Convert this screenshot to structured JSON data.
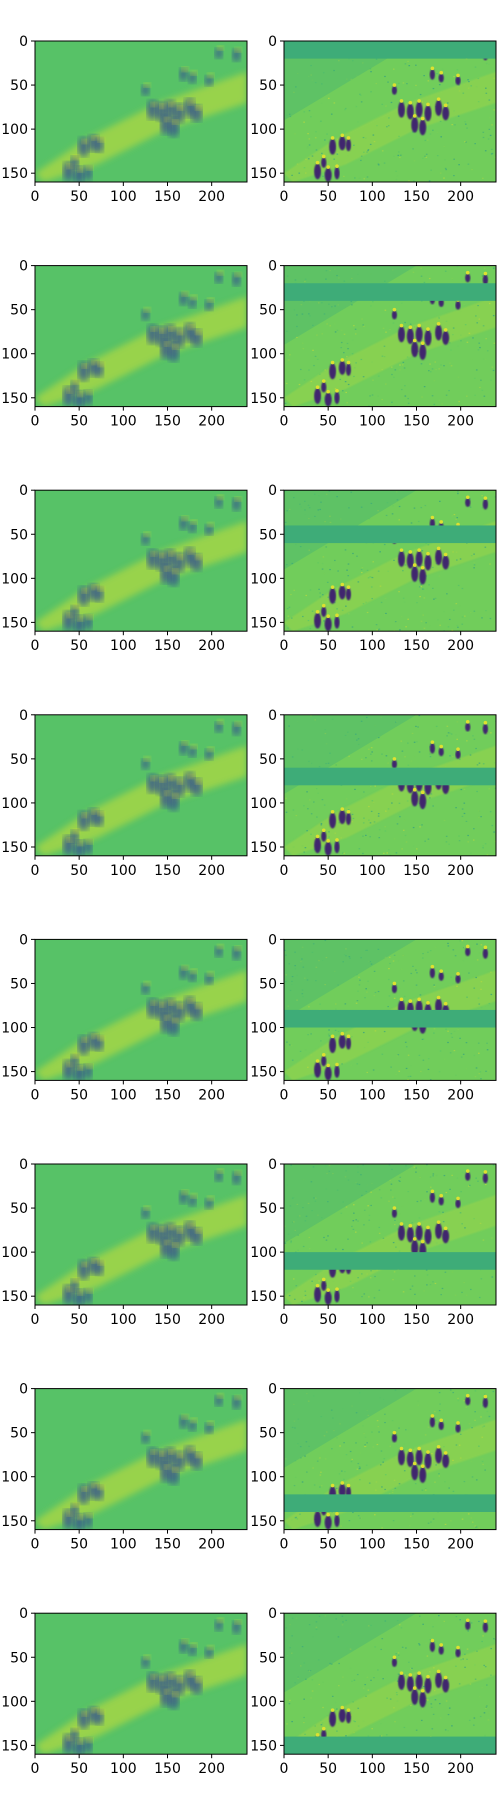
{
  "chart_data": {
    "type": "heatmap",
    "layout": {
      "rows": 8,
      "cols": 2
    },
    "colormap": "viridis",
    "grid": false,
    "xlim": [
      0,
      240
    ],
    "ylim": [
      160,
      0
    ],
    "x_ticks": [
      0,
      50,
      100,
      150,
      200
    ],
    "y_ticks": [
      0,
      50,
      100,
      150
    ],
    "x_tick_labels": [
      "0",
      "50",
      "100",
      "150",
      "200"
    ],
    "y_tick_labels": [
      "0",
      "50",
      "100",
      "150"
    ],
    "left_column": {
      "description": "blurred reconstruction",
      "base_level": 0.72
    },
    "right_column": {
      "description": "detail map with masked horizontal band",
      "base_level": 0.78
    },
    "mask_bands_y": [
      [
        0,
        20
      ],
      [
        20,
        40
      ],
      [
        40,
        60
      ],
      [
        60,
        80
      ],
      [
        80,
        100
      ],
      [
        100,
        120
      ],
      [
        120,
        140
      ],
      [
        140,
        160
      ]
    ]
  }
}
